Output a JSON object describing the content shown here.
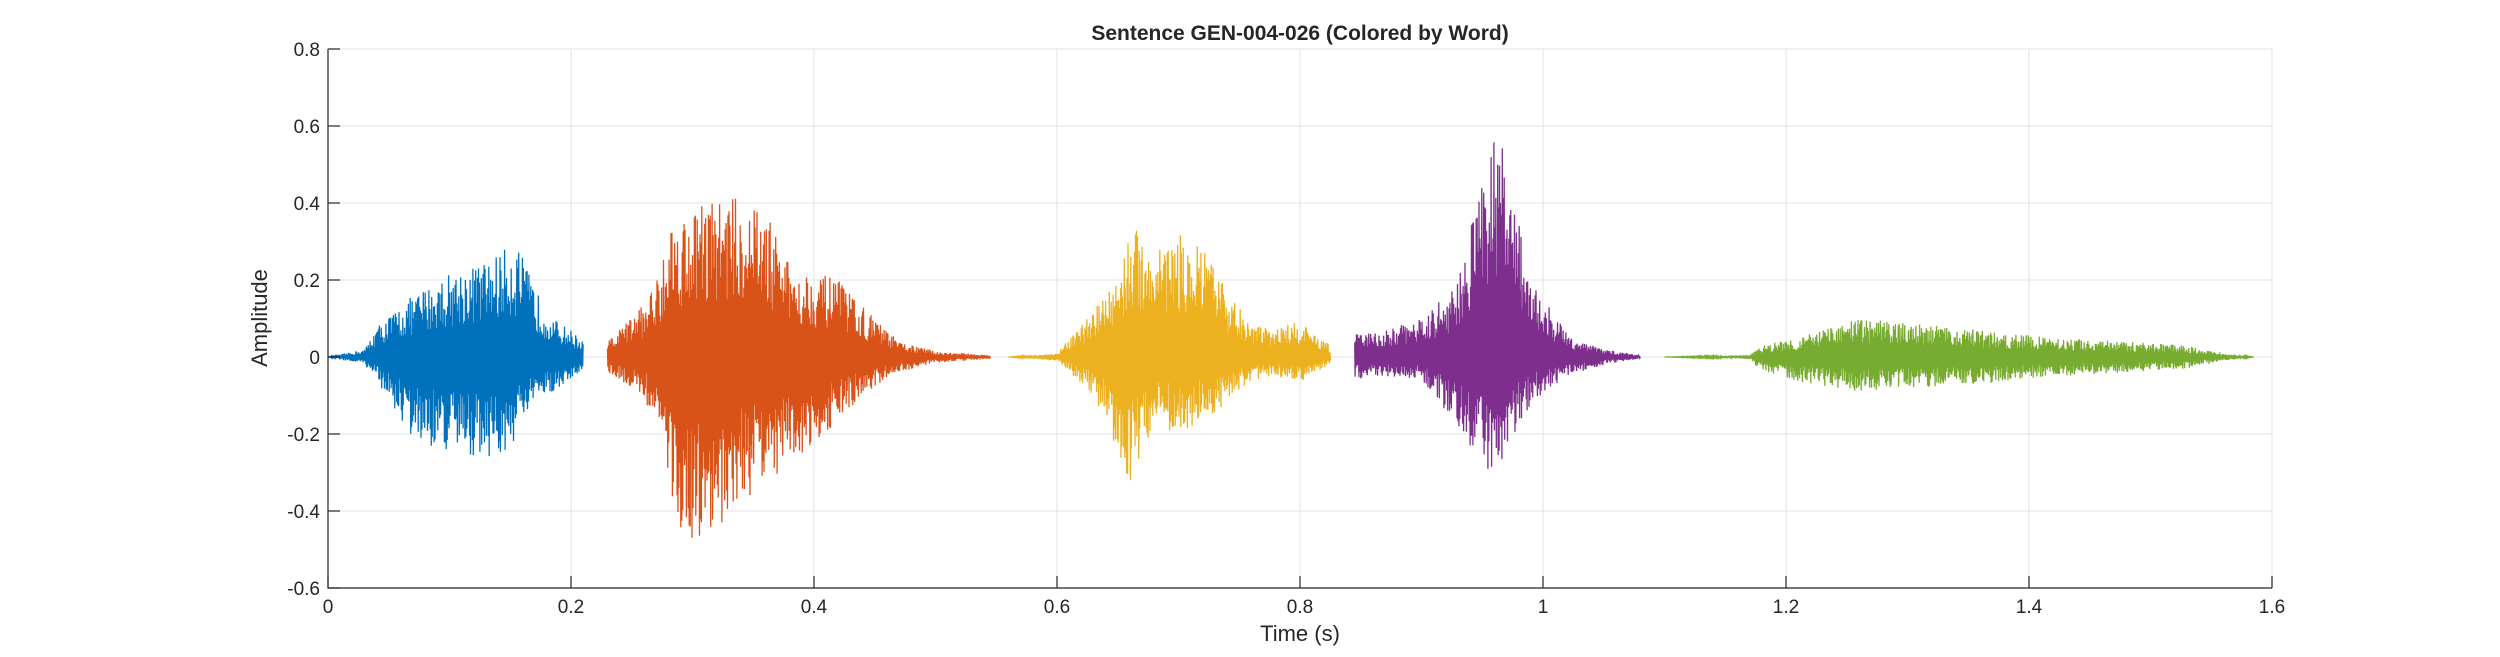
{
  "chart_data": {
    "type": "line",
    "title": "Sentence GEN-004-026 (Colored by Word)",
    "xlabel": "Time (s)",
    "ylabel": "Amplitude",
    "xlim": [
      0,
      1.6
    ],
    "ylim": [
      -0.6,
      0.8
    ],
    "x_ticks": [
      0,
      0.2,
      0.4,
      0.6,
      0.8,
      1,
      1.2,
      1.4,
      1.6
    ],
    "x_tick_labels": [
      "0",
      "0.2",
      "0.4",
      "0.6",
      "0.8",
      "1",
      "1.2",
      "1.4",
      "1.6"
    ],
    "y_ticks": [
      -0.6,
      -0.4,
      -0.2,
      0,
      0.2,
      0.4,
      0.6,
      0.8
    ],
    "y_tick_labels": [
      "-0.6",
      "-0.4",
      "-0.2",
      "0",
      "0.2",
      "0.4",
      "0.6",
      "0.8"
    ],
    "grid": true,
    "legend": "none",
    "series": [
      {
        "color": "#0072BD",
        "x_range": [
          0.0,
          0.21
        ],
        "envelope": [
          [
            0.0,
            0.0
          ],
          [
            0.03,
            0.02
          ],
          [
            0.04,
            0.08
          ],
          [
            0.07,
            0.16
          ],
          [
            0.1,
            0.22
          ],
          [
            0.13,
            0.25
          ],
          [
            0.155,
            0.3
          ],
          [
            0.17,
            0.18
          ],
          [
            0.185,
            0.1
          ],
          [
            0.2,
            0.07
          ],
          [
            0.21,
            0.04
          ]
        ],
        "neg_envelope": [
          [
            0.0,
            0.0
          ],
          [
            0.03,
            0.02
          ],
          [
            0.04,
            0.06
          ],
          [
            0.07,
            0.22
          ],
          [
            0.1,
            0.25
          ],
          [
            0.13,
            0.26
          ],
          [
            0.145,
            0.27
          ],
          [
            0.17,
            0.12
          ],
          [
            0.2,
            0.06
          ],
          [
            0.21,
            0.03
          ]
        ],
        "peak_max": 0.3,
        "peak_min": -0.28
      },
      {
        "color": "#D95319",
        "x_range": [
          0.23,
          0.545
        ],
        "envelope": [
          [
            0.23,
            0.04
          ],
          [
            0.26,
            0.14
          ],
          [
            0.27,
            0.2
          ],
          [
            0.28,
            0.35
          ],
          [
            0.31,
            0.41
          ],
          [
            0.33,
            0.42
          ],
          [
            0.36,
            0.38
          ],
          [
            0.38,
            0.24
          ],
          [
            0.42,
            0.2
          ],
          [
            0.45,
            0.1
          ],
          [
            0.47,
            0.04
          ],
          [
            0.5,
            0.015
          ],
          [
            0.545,
            0.005
          ]
        ],
        "neg_envelope": [
          [
            0.23,
            0.04
          ],
          [
            0.26,
            0.1
          ],
          [
            0.28,
            0.3
          ],
          [
            0.29,
            0.5
          ],
          [
            0.31,
            0.49
          ],
          [
            0.34,
            0.38
          ],
          [
            0.36,
            0.33
          ],
          [
            0.4,
            0.23
          ],
          [
            0.44,
            0.1
          ],
          [
            0.47,
            0.04
          ],
          [
            0.5,
            0.015
          ],
          [
            0.545,
            0.005
          ]
        ],
        "peak_max": 0.42,
        "peak_min": -0.5
      },
      {
        "color": "#EDB120",
        "x_range": [
          0.56,
          0.825
        ],
        "envelope": [
          [
            0.56,
            0.0
          ],
          [
            0.6,
            0.01
          ],
          [
            0.63,
            0.12
          ],
          [
            0.65,
            0.22
          ],
          [
            0.66,
            0.34
          ],
          [
            0.68,
            0.3
          ],
          [
            0.7,
            0.32
          ],
          [
            0.72,
            0.28
          ],
          [
            0.74,
            0.18
          ],
          [
            0.76,
            0.08
          ],
          [
            0.78,
            0.08
          ],
          [
            0.8,
            0.09
          ],
          [
            0.825,
            0.03
          ]
        ],
        "neg_envelope": [
          [
            0.56,
            0.0
          ],
          [
            0.6,
            0.01
          ],
          [
            0.63,
            0.1
          ],
          [
            0.66,
            0.33
          ],
          [
            0.68,
            0.18
          ],
          [
            0.7,
            0.2
          ],
          [
            0.72,
            0.17
          ],
          [
            0.74,
            0.12
          ],
          [
            0.76,
            0.06
          ],
          [
            0.78,
            0.05
          ],
          [
            0.8,
            0.07
          ],
          [
            0.825,
            0.02
          ]
        ],
        "peak_max": 0.34,
        "peak_min": -0.33
      },
      {
        "color": "#7E2F8E",
        "x_range": [
          0.845,
          1.08
        ],
        "envelope": [
          [
            0.845,
            0.06
          ],
          [
            0.87,
            0.07
          ],
          [
            0.9,
            0.1
          ],
          [
            0.93,
            0.2
          ],
          [
            0.95,
            0.48
          ],
          [
            0.962,
            0.6
          ],
          [
            0.97,
            0.5
          ],
          [
            0.99,
            0.2
          ],
          [
            1.02,
            0.06
          ],
          [
            1.05,
            0.02
          ],
          [
            1.08,
            0.005
          ]
        ],
        "neg_envelope": [
          [
            0.845,
            0.06
          ],
          [
            0.87,
            0.05
          ],
          [
            0.9,
            0.06
          ],
          [
            0.93,
            0.18
          ],
          [
            0.95,
            0.28
          ],
          [
            0.96,
            0.32
          ],
          [
            0.97,
            0.25
          ],
          [
            0.99,
            0.12
          ],
          [
            1.02,
            0.05
          ],
          [
            1.05,
            0.02
          ],
          [
            1.08,
            0.005
          ]
        ],
        "peak_max": 0.6,
        "peak_min": -0.32
      },
      {
        "color": "#77AC30",
        "x_range": [
          1.1,
          1.585
        ],
        "envelope": [
          [
            1.1,
            0.0
          ],
          [
            1.17,
            0.005
          ],
          [
            1.18,
            0.03
          ],
          [
            1.22,
            0.06
          ],
          [
            1.26,
            0.1
          ],
          [
            1.3,
            0.09
          ],
          [
            1.36,
            0.07
          ],
          [
            1.42,
            0.05
          ],
          [
            1.48,
            0.04
          ],
          [
            1.53,
            0.03
          ],
          [
            1.56,
            0.01
          ],
          [
            1.585,
            0.0
          ]
        ],
        "neg_envelope": [
          [
            1.1,
            0.0
          ],
          [
            1.17,
            0.005
          ],
          [
            1.18,
            0.04
          ],
          [
            1.22,
            0.07
          ],
          [
            1.26,
            0.09
          ],
          [
            1.3,
            0.08
          ],
          [
            1.36,
            0.07
          ],
          [
            1.42,
            0.05
          ],
          [
            1.48,
            0.04
          ],
          [
            1.53,
            0.03
          ],
          [
            1.56,
            0.01
          ],
          [
            1.585,
            0.0
          ]
        ],
        "peak_max": 0.1,
        "peak_min": -0.09
      }
    ]
  }
}
